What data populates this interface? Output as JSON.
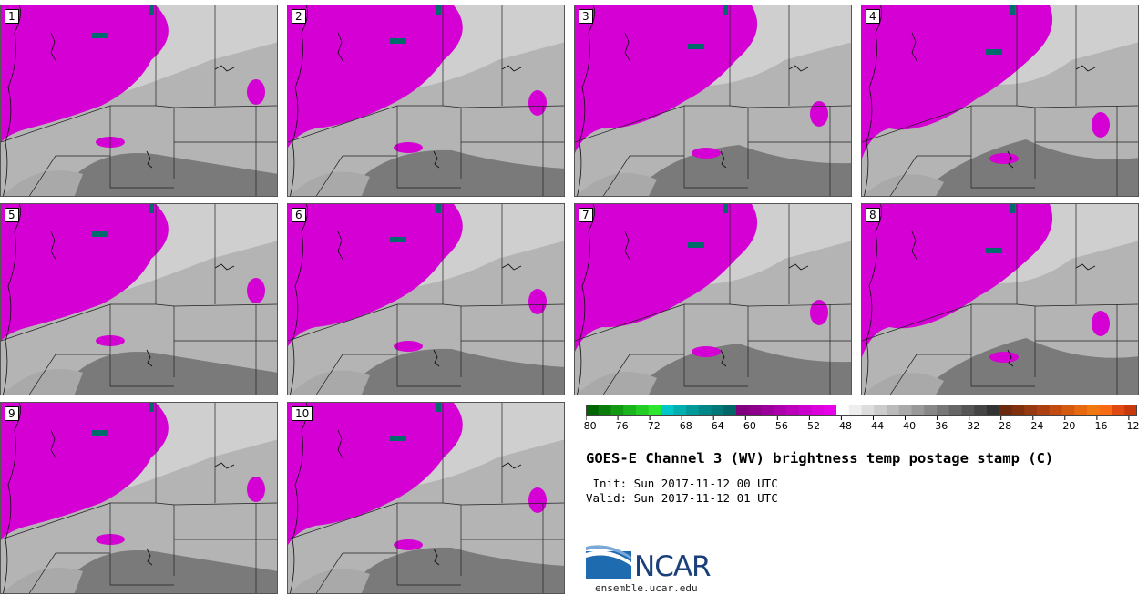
{
  "panels": [
    {
      "number": "1"
    },
    {
      "number": "2"
    },
    {
      "number": "3"
    },
    {
      "number": "4"
    },
    {
      "number": "5"
    },
    {
      "number": "6"
    },
    {
      "number": "7"
    },
    {
      "number": "8"
    },
    {
      "number": "9"
    },
    {
      "number": "10"
    }
  ],
  "colorbar": {
    "ticks": [
      "−80",
      "−76",
      "−72",
      "−68",
      "−64",
      "−60",
      "−56",
      "−52",
      "−48",
      "−44",
      "−40",
      "−36",
      "−32",
      "−28",
      "−24",
      "−20",
      "−16",
      "−12"
    ],
    "colors": [
      "#006400",
      "#0a7d0a",
      "#139a13",
      "#1cb41c",
      "#24cd24",
      "#2ee62e",
      "#00c8c8",
      "#00b0b0",
      "#009a9a",
      "#008888",
      "#007878",
      "#006868",
      "#800080",
      "#8c008c",
      "#9c009c",
      "#ac00ac",
      "#bc00bc",
      "#cc00cc",
      "#dc00dc",
      "#e800e8",
      "#ffffff",
      "#eeeeee",
      "#dddddd",
      "#cccccc",
      "#bbbbbb",
      "#aaaaaa",
      "#999999",
      "#888888",
      "#777777",
      "#666666",
      "#555555",
      "#444444",
      "#333333",
      "#6b2a10",
      "#80300c",
      "#963810",
      "#ad4010",
      "#c24c10",
      "#d45a10",
      "#e86810",
      "#f07810",
      "#f86a14",
      "#e04a10",
      "#c83a0e"
    ]
  },
  "title": "GOES-E Channel 3 (WV) brightness temp postage stamp (C)",
  "init": " Init: Sun 2017-11-12 00 UTC",
  "valid": "Valid: Sun 2017-11-12 01 UTC",
  "logo_text": "NCAR",
  "site": "ensemble.ucar.edu",
  "colors": {
    "moist": "#d400d4",
    "cold": "#006b6b",
    "land_light": "#cfcfcf",
    "land_mid": "#a9a9a9",
    "land_dark": "#7a7a7a"
  }
}
